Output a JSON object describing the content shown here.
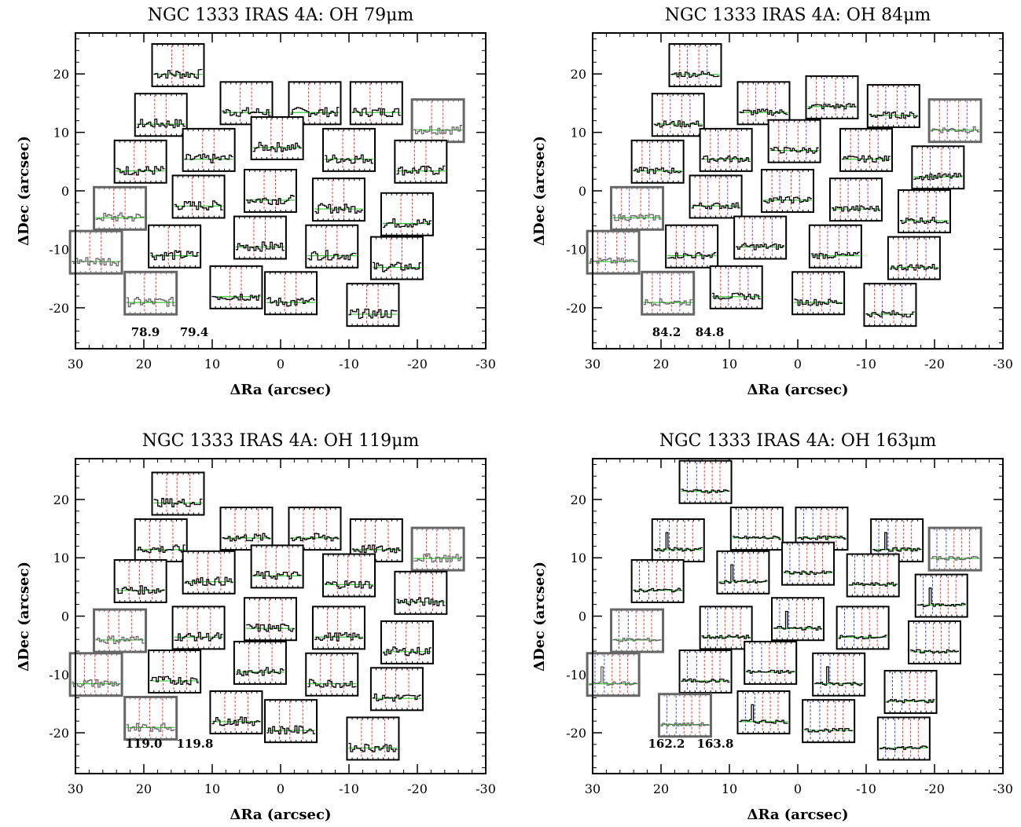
{
  "chart_data": [
    {
      "type": "scatter",
      "title": "NGC 1333 IRAS 4A: OH 79μm",
      "xlabel": "ΔRa (arcsec)",
      "ylabel": "ΔDec (arcsec)",
      "xlim": [
        30,
        -30
      ],
      "ylim": [
        -27,
        27
      ],
      "xticks": [
        30,
        20,
        10,
        0,
        -10,
        -20,
        -30
      ],
      "yticks": [
        -20,
        -10,
        0,
        10,
        20
      ],
      "wavelength_labels": [
        "78.9",
        "79.4"
      ],
      "spaxels": [
        {
          "x": 15.0,
          "y": 21.5,
          "s": "black"
        },
        {
          "x": 17.5,
          "y": 13.0,
          "s": "black"
        },
        {
          "x": 5.0,
          "y": 15.0,
          "s": "black"
        },
        {
          "x": -5.0,
          "y": 15.0,
          "s": "black"
        },
        {
          "x": -14.0,
          "y": 15.0,
          "s": "black"
        },
        {
          "x": -23.0,
          "y": 12.0,
          "s": "gray"
        },
        {
          "x": 20.5,
          "y": 5.0,
          "s": "black"
        },
        {
          "x": 10.5,
          "y": 7.0,
          "s": "black"
        },
        {
          "x": 0.5,
          "y": 9.0,
          "s": "black"
        },
        {
          "x": -10.0,
          "y": 7.0,
          "s": "black"
        },
        {
          "x": -20.5,
          "y": 5.0,
          "s": "black"
        },
        {
          "x": 23.5,
          "y": -3.0,
          "s": "gray"
        },
        {
          "x": 12.0,
          "y": -1.0,
          "s": "black"
        },
        {
          "x": 1.5,
          "y": 0.0,
          "s": "black"
        },
        {
          "x": -8.5,
          "y": -1.5,
          "s": "black"
        },
        {
          "x": -18.5,
          "y": -4.0,
          "s": "black"
        },
        {
          "x": 27.0,
          "y": -10.5,
          "s": "gray"
        },
        {
          "x": 15.5,
          "y": -9.5,
          "s": "black"
        },
        {
          "x": 3.0,
          "y": -8.0,
          "s": "black"
        },
        {
          "x": -7.5,
          "y": -9.5,
          "s": "black"
        },
        {
          "x": -17.0,
          "y": -11.5,
          "s": "black"
        },
        {
          "x": 19.0,
          "y": -17.5,
          "s": "gray"
        },
        {
          "x": 6.5,
          "y": -16.5,
          "s": "black"
        },
        {
          "x": -1.5,
          "y": -17.5,
          "s": "black"
        },
        {
          "x": -13.5,
          "y": -19.5,
          "s": "black"
        }
      ]
    },
    {
      "type": "scatter",
      "title": "NGC 1333 IRAS 4A: OH 84μm",
      "xlabel": "ΔRa (arcsec)",
      "ylabel": "ΔDec (arcsec)",
      "xlim": [
        30,
        -30
      ],
      "ylim": [
        -27,
        27
      ],
      "xticks": [
        30,
        20,
        10,
        0,
        -10,
        -20,
        -30
      ],
      "yticks": [
        -20,
        -10,
        0,
        10,
        20
      ],
      "wavelength_labels": [
        "84.2",
        "84.8"
      ],
      "spaxels": [
        {
          "x": 15.0,
          "y": 21.5,
          "s": "black"
        },
        {
          "x": 17.5,
          "y": 13.0,
          "s": "black"
        },
        {
          "x": 5.0,
          "y": 15.0,
          "s": "black"
        },
        {
          "x": -5.0,
          "y": 16.0,
          "s": "black"
        },
        {
          "x": -14.0,
          "y": 14.5,
          "s": "black"
        },
        {
          "x": -23.0,
          "y": 12.0,
          "s": "gray"
        },
        {
          "x": 20.5,
          "y": 5.0,
          "s": "black"
        },
        {
          "x": 10.5,
          "y": 7.0,
          "s": "black"
        },
        {
          "x": 0.5,
          "y": 8.5,
          "s": "black"
        },
        {
          "x": -10.0,
          "y": 7.0,
          "s": "black"
        },
        {
          "x": -20.5,
          "y": 4.0,
          "s": "black"
        },
        {
          "x": 23.5,
          "y": -3.0,
          "s": "gray"
        },
        {
          "x": 12.0,
          "y": -1.0,
          "s": "black"
        },
        {
          "x": 1.5,
          "y": 0.0,
          "s": "black"
        },
        {
          "x": -8.5,
          "y": -1.5,
          "s": "black"
        },
        {
          "x": -18.5,
          "y": -3.5,
          "s": "black"
        },
        {
          "x": 27.0,
          "y": -10.5,
          "s": "gray"
        },
        {
          "x": 15.5,
          "y": -9.5,
          "s": "black"
        },
        {
          "x": 5.5,
          "y": -8.0,
          "s": "black"
        },
        {
          "x": -5.5,
          "y": -9.5,
          "s": "black"
        },
        {
          "x": -17.0,
          "y": -11.5,
          "s": "black"
        },
        {
          "x": 19.0,
          "y": -17.5,
          "s": "gray"
        },
        {
          "x": 9.0,
          "y": -16.5,
          "s": "black"
        },
        {
          "x": -3.0,
          "y": -17.5,
          "s": "black"
        },
        {
          "x": -13.5,
          "y": -19.5,
          "s": "black"
        }
      ]
    },
    {
      "type": "scatter",
      "title": "NGC 1333 IRAS 4A: OH 119μm",
      "xlabel": "ΔRa (arcsec)",
      "ylabel": "ΔDec (arcsec)",
      "xlim": [
        30,
        -30
      ],
      "ylim": [
        -27,
        27
      ],
      "xticks": [
        30,
        20,
        10,
        0,
        -10,
        -20,
        -30
      ],
      "yticks": [
        -20,
        -10,
        0,
        10,
        20
      ],
      "wavelength_labels": [
        "119.0",
        "119.8"
      ],
      "spaxels": [
        {
          "x": 15.0,
          "y": 21.0,
          "s": "black"
        },
        {
          "x": 17.5,
          "y": 13.0,
          "s": "black"
        },
        {
          "x": 5.0,
          "y": 15.0,
          "s": "black"
        },
        {
          "x": -5.0,
          "y": 15.0,
          "s": "black"
        },
        {
          "x": -14.0,
          "y": 13.0,
          "s": "black"
        },
        {
          "x": -23.0,
          "y": 11.5,
          "s": "gray"
        },
        {
          "x": 20.5,
          "y": 6.0,
          "s": "black"
        },
        {
          "x": 10.5,
          "y": 7.5,
          "s": "black"
        },
        {
          "x": 0.5,
          "y": 8.5,
          "s": "black"
        },
        {
          "x": -10.0,
          "y": 7.0,
          "s": "black"
        },
        {
          "x": -20.5,
          "y": 4.0,
          "s": "black"
        },
        {
          "x": 23.5,
          "y": -2.5,
          "s": "gray"
        },
        {
          "x": 12.0,
          "y": -2.0,
          "s": "black"
        },
        {
          "x": 1.5,
          "y": -0.5,
          "s": "black"
        },
        {
          "x": -8.5,
          "y": -2.0,
          "s": "black"
        },
        {
          "x": -18.5,
          "y": -4.5,
          "s": "black"
        },
        {
          "x": 27.0,
          "y": -10.0,
          "s": "gray"
        },
        {
          "x": 15.5,
          "y": -9.5,
          "s": "black"
        },
        {
          "x": 3.0,
          "y": -8.0,
          "s": "black"
        },
        {
          "x": -7.5,
          "y": -10.0,
          "s": "black"
        },
        {
          "x": -17.0,
          "y": -12.5,
          "s": "black"
        },
        {
          "x": 19.0,
          "y": -17.5,
          "s": "gray"
        },
        {
          "x": 6.5,
          "y": -16.5,
          "s": "black"
        },
        {
          "x": -1.5,
          "y": -18.0,
          "s": "black"
        },
        {
          "x": -13.5,
          "y": -21.0,
          "s": "black"
        }
      ]
    },
    {
      "type": "scatter",
      "title": "NGC 1333 IRAS 4A: OH 163μm",
      "xlabel": "ΔRa (arcsec)",
      "ylabel": "ΔDec (arcsec)",
      "xlim": [
        30,
        -30
      ],
      "ylim": [
        -27,
        27
      ],
      "xticks": [
        30,
        20,
        10,
        0,
        -10,
        -20,
        -30
      ],
      "yticks": [
        -20,
        -10,
        0,
        10,
        20
      ],
      "wavelength_labels": [
        "162.2",
        "163.8"
      ],
      "spaxels": [
        {
          "x": 13.5,
          "y": 23.0,
          "s": "black"
        },
        {
          "x": 17.5,
          "y": 13.0,
          "s": "black"
        },
        {
          "x": 6.0,
          "y": 15.0,
          "s": "black"
        },
        {
          "x": -3.5,
          "y": 15.0,
          "s": "black"
        },
        {
          "x": -14.5,
          "y": 13.0,
          "s": "black"
        },
        {
          "x": -23.0,
          "y": 11.5,
          "s": "gray"
        },
        {
          "x": 20.5,
          "y": 6.0,
          "s": "black"
        },
        {
          "x": 8.0,
          "y": 7.5,
          "s": "black"
        },
        {
          "x": -1.5,
          "y": 9.0,
          "s": "black"
        },
        {
          "x": -11.0,
          "y": 7.0,
          "s": "black"
        },
        {
          "x": -21.0,
          "y": 3.5,
          "s": "black"
        },
        {
          "x": 23.5,
          "y": -2.5,
          "s": "gray"
        },
        {
          "x": 10.5,
          "y": -2.0,
          "s": "black"
        },
        {
          "x": 0.0,
          "y": -0.5,
          "s": "black"
        },
        {
          "x": -9.5,
          "y": -2.0,
          "s": "black"
        },
        {
          "x": -20.0,
          "y": -4.5,
          "s": "black"
        },
        {
          "x": 27.0,
          "y": -10.0,
          "s": "gray"
        },
        {
          "x": 13.5,
          "y": -9.5,
          "s": "black"
        },
        {
          "x": 4.0,
          "y": -8.0,
          "s": "black"
        },
        {
          "x": -6.0,
          "y": -10.0,
          "s": "black"
        },
        {
          "x": -16.5,
          "y": -13.0,
          "s": "black"
        },
        {
          "x": 16.5,
          "y": -17.0,
          "s": "gray"
        },
        {
          "x": 5.0,
          "y": -16.5,
          "s": "black"
        },
        {
          "x": -4.5,
          "y": -18.0,
          "s": "black"
        },
        {
          "x": -15.5,
          "y": -21.0,
          "s": "black"
        }
      ]
    }
  ],
  "colors": {
    "axes": "#000000",
    "box_black": "#000000",
    "box_gray": "#666666",
    "continuum": "#33cc33",
    "marker_red": "#ff3333",
    "marker_blue": "#3344ff",
    "marker_purple": "#9933cc"
  }
}
